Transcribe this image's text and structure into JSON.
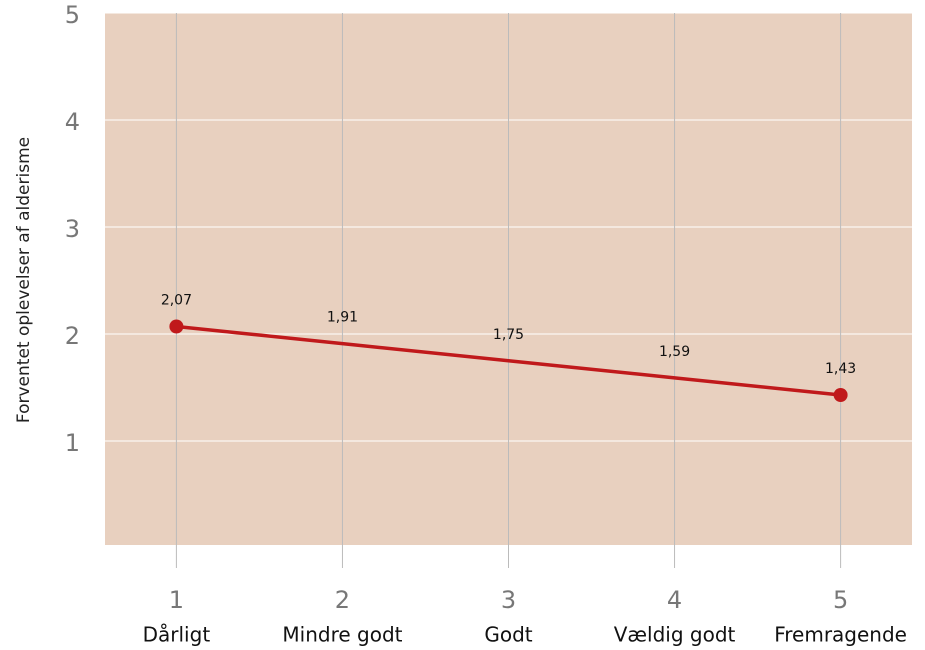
{
  "chart_data": {
    "type": "line",
    "y_label": "Forventet oplevelser af alderisme",
    "x": [
      1,
      2,
      3,
      4,
      5
    ],
    "categories": [
      "Dårligt",
      "Mindre godt",
      "Godt",
      "Vældig godt",
      "Fremragende"
    ],
    "series": [
      {
        "name": "Forventet oplevelser af alderisme",
        "color": "#c0191b",
        "values": [
          2.07,
          1.91,
          1.75,
          1.59,
          1.43
        ],
        "value_labels": [
          "2,07",
          "1,91",
          "1,75",
          "1,59",
          "1,43"
        ]
      }
    ],
    "xlim": [
      0.57,
      5.43
    ],
    "xticks": [
      1,
      2,
      3,
      4,
      5
    ],
    "ylim": [
      0,
      5
    ],
    "yticks": [
      1,
      2,
      3,
      4,
      5
    ],
    "grid": true,
    "background": "#e8d0bf"
  }
}
